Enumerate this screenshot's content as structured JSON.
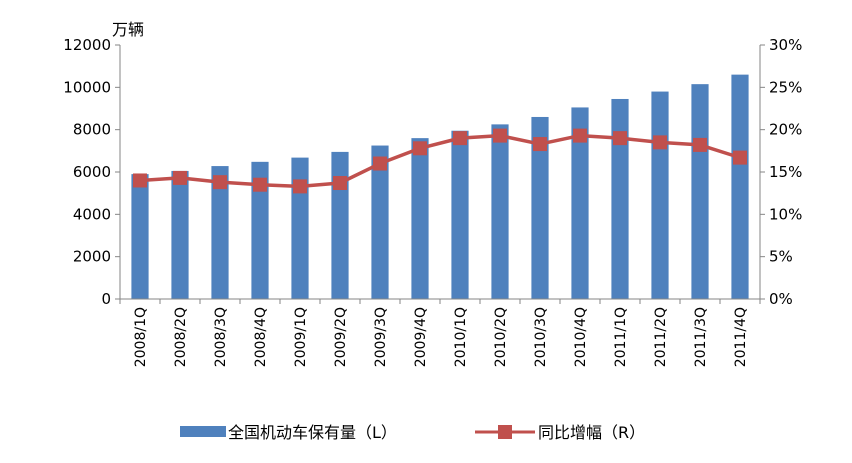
{
  "chart_data": {
    "type": "bar",
    "y_unit_label": "万辆",
    "categories": [
      "2008/1Q",
      "2008/2Q",
      "2008/3Q",
      "2008/4Q",
      "2009/1Q",
      "2009/2Q",
      "2009/3Q",
      "2009/4Q",
      "2010/1Q",
      "2010/2Q",
      "2010/3Q",
      "2010/4Q",
      "2011/1Q",
      "2011/2Q",
      "2011/3Q",
      "2011/4Q"
    ],
    "series": [
      {
        "name": "全国机动车保有量（L）",
        "type": "bar",
        "axis": "left",
        "color": "#4F81BD",
        "values": [
          5900,
          6050,
          6280,
          6480,
          6680,
          6950,
          7250,
          7600,
          7950,
          8250,
          8600,
          9050,
          9450,
          9800,
          10150,
          10600
        ]
      },
      {
        "name": "同比增幅（R）",
        "type": "line",
        "axis": "right",
        "color": "#C0504D",
        "values": [
          14.0,
          14.3,
          13.8,
          13.5,
          13.3,
          13.7,
          16.0,
          17.8,
          19.0,
          19.3,
          18.3,
          19.3,
          19.0,
          18.5,
          18.2,
          16.7
        ]
      }
    ],
    "y_left": {
      "min": 0,
      "max": 12000,
      "ticks": [
        "0",
        "2000",
        "4000",
        "6000",
        "8000",
        "10000",
        "12000"
      ]
    },
    "y_right": {
      "min": 0,
      "max": 30,
      "ticks": [
        "0%",
        "5%",
        "10%",
        "15%",
        "20%",
        "25%",
        "30%"
      ]
    },
    "grid": false,
    "legend_position": "bottom"
  }
}
